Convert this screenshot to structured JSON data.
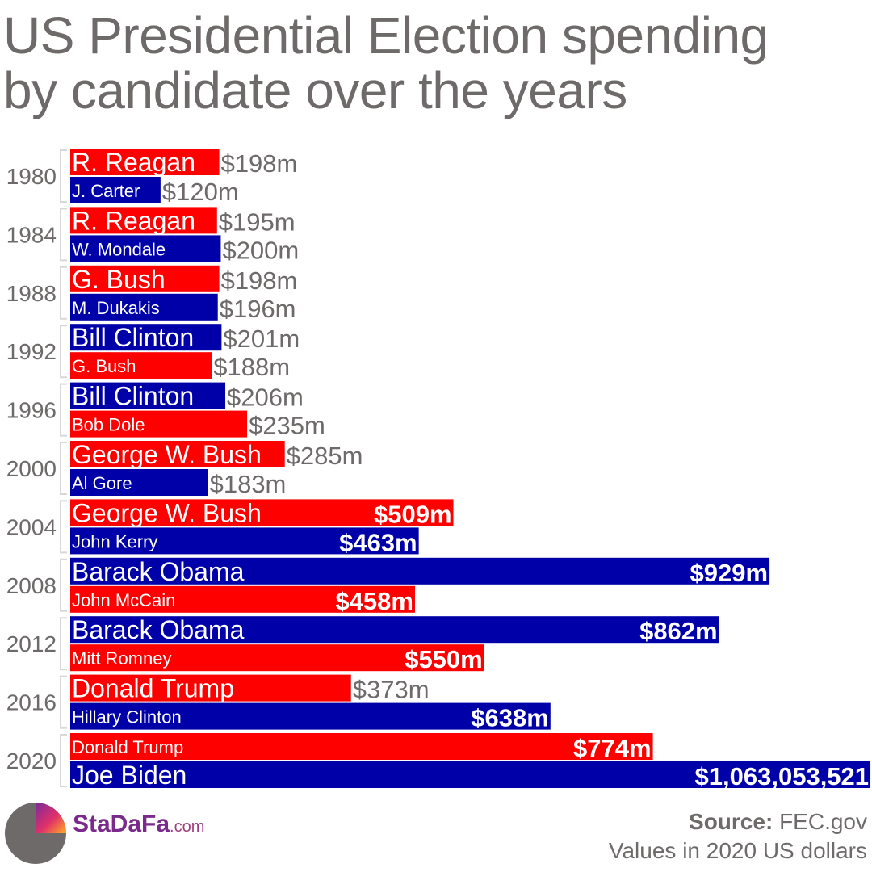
{
  "title_line1": "US Presidential Election spending",
  "title_line2": "by candidate over the years",
  "colors": {
    "republican": "#fe0000",
    "democrat": "#0000a8",
    "text": "#6e6a6a"
  },
  "chart_data": {
    "type": "bar",
    "orientation": "horizontal",
    "title": "US Presidential Election spending by candidate over the years",
    "units": "millions of 2020 US dollars",
    "xlim": [
      0,
      1063
    ],
    "groups": [
      {
        "year": "1980",
        "bars": [
          {
            "name": "R. Reagan",
            "party": "republican",
            "value": 198,
            "label": "$198m"
          },
          {
            "name": "J. Carter",
            "party": "democrat",
            "value": 120,
            "label": "$120m"
          }
        ]
      },
      {
        "year": "1984",
        "bars": [
          {
            "name": "R. Reagan",
            "party": "republican",
            "value": 195,
            "label": "$195m"
          },
          {
            "name": "W. Mondale",
            "party": "democrat",
            "value": 200,
            "label": "$200m"
          }
        ]
      },
      {
        "year": "1988",
        "bars": [
          {
            "name": "G. Bush",
            "party": "republican",
            "value": 198,
            "label": "$198m"
          },
          {
            "name": "M. Dukakis",
            "party": "democrat",
            "value": 196,
            "label": "$196m"
          }
        ]
      },
      {
        "year": "1992",
        "bars": [
          {
            "name": "Bill Clinton",
            "party": "democrat",
            "value": 201,
            "label": "$201m"
          },
          {
            "name": "G. Bush",
            "party": "republican",
            "value": 188,
            "label": "$188m"
          }
        ]
      },
      {
        "year": "1996",
        "bars": [
          {
            "name": "Bill Clinton",
            "party": "democrat",
            "value": 206,
            "label": "$206m"
          },
          {
            "name": "Bob Dole",
            "party": "republican",
            "value": 235,
            "label": "$235m"
          }
        ]
      },
      {
        "year": "2000",
        "bars": [
          {
            "name": "George W. Bush",
            "party": "republican",
            "value": 285,
            "label": "$285m"
          },
          {
            "name": "Al Gore",
            "party": "democrat",
            "value": 183,
            "label": "$183m"
          }
        ]
      },
      {
        "year": "2004",
        "bars": [
          {
            "name": "George W. Bush",
            "party": "republican",
            "value": 509,
            "label": "$509m"
          },
          {
            "name": "John Kerry",
            "party": "democrat",
            "value": 463,
            "label": "$463m"
          }
        ]
      },
      {
        "year": "2008",
        "bars": [
          {
            "name": "Barack  Obama",
            "party": "democrat",
            "value": 929,
            "label": "$929m"
          },
          {
            "name": "John McCain",
            "party": "republican",
            "value": 458,
            "label": "$458m"
          }
        ]
      },
      {
        "year": "2012",
        "bars": [
          {
            "name": "Barack  Obama",
            "party": "democrat",
            "value": 862,
            "label": "$862m"
          },
          {
            "name": "Mitt Romney",
            "party": "republican",
            "value": 550,
            "label": "$550m"
          }
        ]
      },
      {
        "year": "2016",
        "bars": [
          {
            "name": "Donald Trump",
            "party": "republican",
            "value": 373,
            "label": "$373m"
          },
          {
            "name": "Hillary Clinton",
            "party": "democrat",
            "value": 638,
            "label": "$638m"
          }
        ]
      },
      {
        "year": "2020",
        "bars": [
          {
            "name": "Donald Trump",
            "party": "republican",
            "value": 774,
            "label": "$774m"
          },
          {
            "name": "Joe Biden",
            "party": "democrat",
            "value": 1063.053521,
            "label": "$1,063,053,521"
          }
        ]
      }
    ]
  },
  "footer": {
    "brand_name": "StaDaFa",
    "brand_tld": ".com",
    "source_label": "Source:",
    "source_value": "FEC.gov",
    "note": "Values in 2020 US dollars"
  }
}
